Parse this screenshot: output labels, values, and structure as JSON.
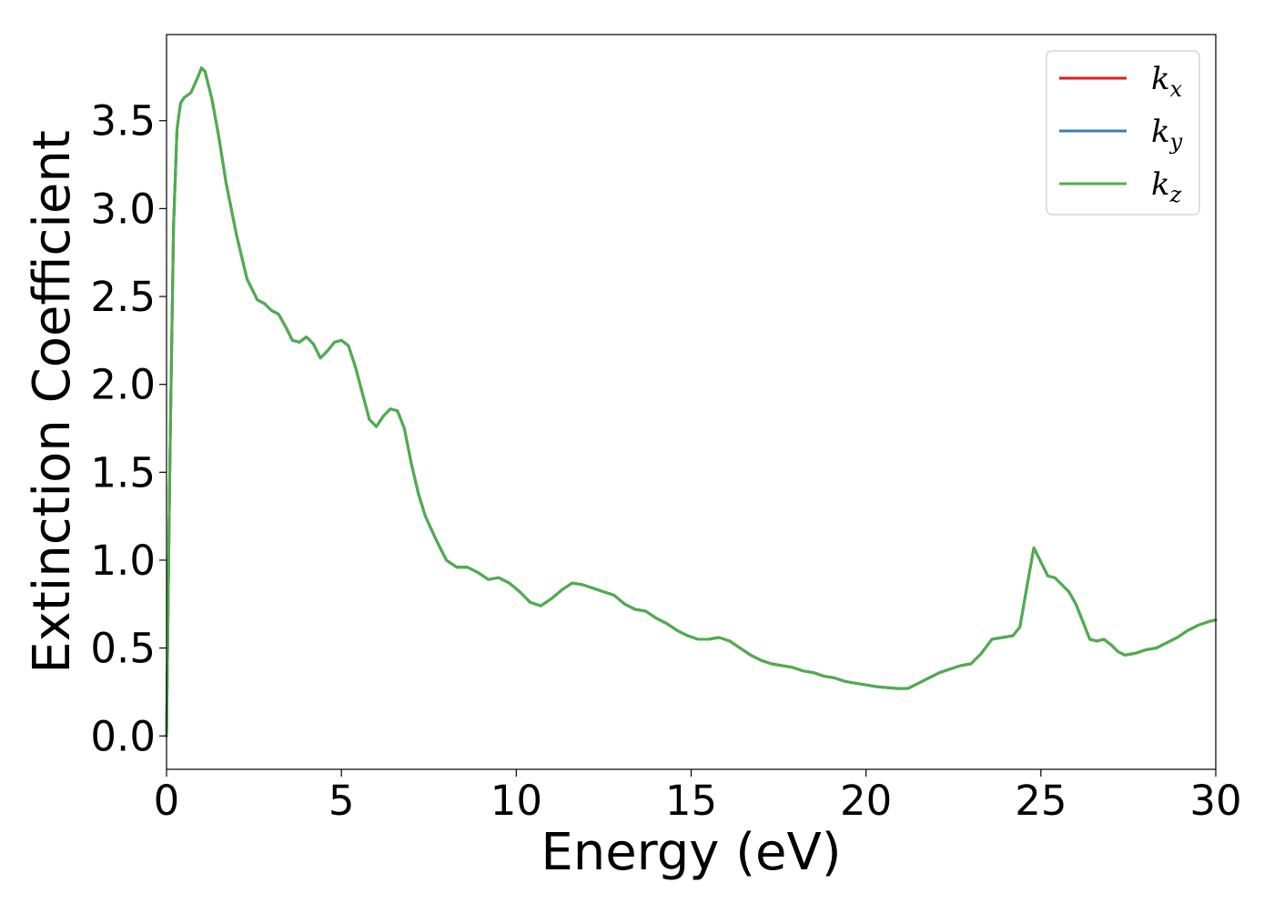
{
  "chart_data": {
    "type": "line",
    "xlabel": "Energy (eV)",
    "ylabel": "Extinction Coefficient",
    "xlim": [
      0,
      30
    ],
    "ylim": [
      -0.19,
      3.99
    ],
    "xticks": [
      0,
      5,
      10,
      15,
      20,
      25,
      30
    ],
    "xtick_labels": [
      "0",
      "5",
      "10",
      "15",
      "20",
      "25",
      "30"
    ],
    "yticks": [
      0.0,
      0.5,
      1.0,
      1.5,
      2.0,
      2.5,
      3.0,
      3.5
    ],
    "ytick_labels": [
      "0.0",
      "0.5",
      "1.0",
      "1.5",
      "2.0",
      "2.5",
      "3.0",
      "3.5"
    ],
    "grid": false,
    "legend_position": "top-right",
    "x": [
      0.0,
      0.1,
      0.2,
      0.3,
      0.4,
      0.5,
      0.7,
      0.9,
      1.0,
      1.1,
      1.3,
      1.5,
      1.7,
      2.0,
      2.3,
      2.6,
      2.8,
      3.0,
      3.2,
      3.4,
      3.6,
      3.8,
      4.0,
      4.2,
      4.4,
      4.6,
      4.8,
      5.0,
      5.2,
      5.4,
      5.6,
      5.8,
      6.0,
      6.2,
      6.4,
      6.6,
      6.8,
      7.0,
      7.2,
      7.4,
      7.7,
      8.0,
      8.3,
      8.6,
      8.9,
      9.2,
      9.5,
      9.8,
      10.1,
      10.4,
      10.7,
      11.0,
      11.3,
      11.6,
      11.9,
      12.2,
      12.5,
      12.8,
      13.1,
      13.4,
      13.7,
      14.0,
      14.3,
      14.6,
      14.9,
      15.2,
      15.5,
      15.8,
      16.1,
      16.4,
      16.7,
      17.0,
      17.3,
      17.6,
      17.9,
      18.2,
      18.5,
      18.8,
      19.1,
      19.4,
      19.7,
      20.0,
      20.3,
      20.6,
      20.9,
      21.2,
      21.5,
      21.8,
      22.1,
      22.4,
      22.7,
      23.0,
      23.3,
      23.6,
      23.9,
      24.2,
      24.4,
      24.6,
      24.8,
      25.0,
      25.2,
      25.4,
      25.6,
      25.8,
      26.0,
      26.2,
      26.4,
      26.6,
      26.8,
      27.0,
      27.2,
      27.4,
      27.7,
      28.0,
      28.3,
      28.6,
      28.9,
      29.2,
      29.5,
      29.8,
      30.0
    ],
    "series": [
      {
        "name": "k_x",
        "color": "#e41a1c",
        "values": [
          0.0,
          1.6,
          2.9,
          3.45,
          3.6,
          3.63,
          3.66,
          3.75,
          3.8,
          3.78,
          3.62,
          3.4,
          3.15,
          2.85,
          2.6,
          2.48,
          2.46,
          2.42,
          2.4,
          2.33,
          2.25,
          2.24,
          2.27,
          2.23,
          2.15,
          2.19,
          2.24,
          2.25,
          2.22,
          2.1,
          1.95,
          1.8,
          1.76,
          1.82,
          1.86,
          1.85,
          1.75,
          1.55,
          1.38,
          1.25,
          1.12,
          1.0,
          0.96,
          0.96,
          0.93,
          0.89,
          0.9,
          0.87,
          0.82,
          0.76,
          0.74,
          0.78,
          0.83,
          0.87,
          0.86,
          0.84,
          0.82,
          0.8,
          0.75,
          0.72,
          0.71,
          0.67,
          0.64,
          0.6,
          0.57,
          0.55,
          0.55,
          0.56,
          0.54,
          0.5,
          0.46,
          0.43,
          0.41,
          0.4,
          0.39,
          0.37,
          0.36,
          0.34,
          0.33,
          0.31,
          0.3,
          0.29,
          0.28,
          0.275,
          0.27,
          0.27,
          0.3,
          0.33,
          0.36,
          0.38,
          0.4,
          0.41,
          0.47,
          0.55,
          0.56,
          0.57,
          0.62,
          0.85,
          1.07,
          0.99,
          0.91,
          0.9,
          0.86,
          0.82,
          0.75,
          0.65,
          0.55,
          0.54,
          0.55,
          0.52,
          0.48,
          0.46,
          0.47,
          0.49,
          0.5,
          0.53,
          0.56,
          0.6,
          0.63,
          0.65,
          0.66
        ]
      },
      {
        "name": "k_y",
        "color": "#377eb8",
        "values": [
          0.0,
          1.6,
          2.9,
          3.45,
          3.6,
          3.63,
          3.66,
          3.75,
          3.8,
          3.78,
          3.62,
          3.4,
          3.15,
          2.85,
          2.6,
          2.48,
          2.46,
          2.42,
          2.4,
          2.33,
          2.25,
          2.24,
          2.27,
          2.23,
          2.15,
          2.19,
          2.24,
          2.25,
          2.22,
          2.1,
          1.95,
          1.8,
          1.76,
          1.82,
          1.86,
          1.85,
          1.75,
          1.55,
          1.38,
          1.25,
          1.12,
          1.0,
          0.96,
          0.96,
          0.93,
          0.89,
          0.9,
          0.87,
          0.82,
          0.76,
          0.74,
          0.78,
          0.83,
          0.87,
          0.86,
          0.84,
          0.82,
          0.8,
          0.75,
          0.72,
          0.71,
          0.67,
          0.64,
          0.6,
          0.57,
          0.55,
          0.55,
          0.56,
          0.54,
          0.5,
          0.46,
          0.43,
          0.41,
          0.4,
          0.39,
          0.37,
          0.36,
          0.34,
          0.33,
          0.31,
          0.3,
          0.29,
          0.28,
          0.275,
          0.27,
          0.27,
          0.3,
          0.33,
          0.36,
          0.38,
          0.4,
          0.41,
          0.47,
          0.55,
          0.56,
          0.57,
          0.62,
          0.85,
          1.07,
          0.99,
          0.91,
          0.9,
          0.86,
          0.82,
          0.75,
          0.65,
          0.55,
          0.54,
          0.55,
          0.52,
          0.48,
          0.46,
          0.47,
          0.49,
          0.5,
          0.53,
          0.56,
          0.6,
          0.63,
          0.65,
          0.66
        ]
      },
      {
        "name": "k_z",
        "color": "#4daf4a",
        "values": [
          0.0,
          1.6,
          2.9,
          3.45,
          3.6,
          3.63,
          3.66,
          3.75,
          3.8,
          3.78,
          3.62,
          3.4,
          3.15,
          2.85,
          2.6,
          2.48,
          2.46,
          2.42,
          2.4,
          2.33,
          2.25,
          2.24,
          2.27,
          2.23,
          2.15,
          2.19,
          2.24,
          2.25,
          2.22,
          2.1,
          1.95,
          1.8,
          1.76,
          1.82,
          1.86,
          1.85,
          1.75,
          1.55,
          1.38,
          1.25,
          1.12,
          1.0,
          0.96,
          0.96,
          0.93,
          0.89,
          0.9,
          0.87,
          0.82,
          0.76,
          0.74,
          0.78,
          0.83,
          0.87,
          0.86,
          0.84,
          0.82,
          0.8,
          0.75,
          0.72,
          0.71,
          0.67,
          0.64,
          0.6,
          0.57,
          0.55,
          0.55,
          0.56,
          0.54,
          0.5,
          0.46,
          0.43,
          0.41,
          0.4,
          0.39,
          0.37,
          0.36,
          0.34,
          0.33,
          0.31,
          0.3,
          0.29,
          0.28,
          0.275,
          0.27,
          0.27,
          0.3,
          0.33,
          0.36,
          0.38,
          0.4,
          0.41,
          0.47,
          0.55,
          0.56,
          0.57,
          0.62,
          0.85,
          1.07,
          0.99,
          0.91,
          0.9,
          0.86,
          0.82,
          0.75,
          0.65,
          0.55,
          0.54,
          0.55,
          0.52,
          0.48,
          0.46,
          0.47,
          0.49,
          0.5,
          0.53,
          0.56,
          0.6,
          0.63,
          0.65,
          0.66
        ]
      }
    ],
    "legend": [
      {
        "base": "k",
        "sub": "x",
        "color": "#e41a1c"
      },
      {
        "base": "k",
        "sub": "y",
        "color": "#377eb8"
      },
      {
        "base": "k",
        "sub": "z",
        "color": "#4daf4a"
      }
    ]
  }
}
